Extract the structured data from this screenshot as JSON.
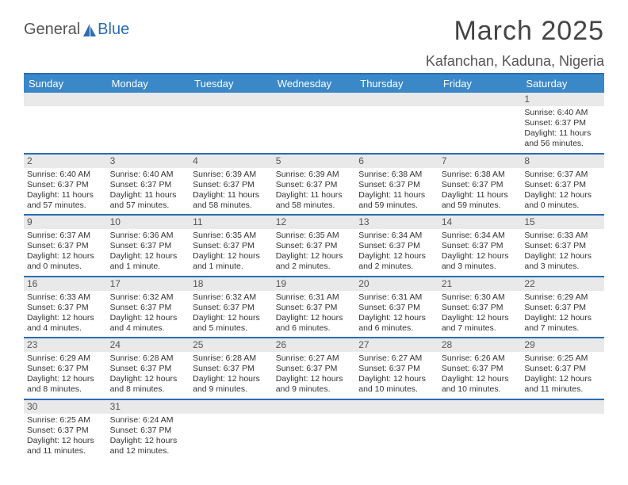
{
  "logo": {
    "general": "General",
    "blue": "Blue"
  },
  "title": "March 2025",
  "location": "Kafanchan, Kaduna, Nigeria",
  "weekdays": [
    "Sunday",
    "Monday",
    "Tuesday",
    "Wednesday",
    "Thursday",
    "Friday",
    "Saturday"
  ],
  "colors": {
    "header_bg": "#3a88c8",
    "accent_line": "#2a6db5",
    "daynum_bg": "#e9e9e9",
    "text": "#333333"
  },
  "weeks": [
    [
      {
        "n": "",
        "sr": "",
        "ss": "",
        "dl": ""
      },
      {
        "n": "",
        "sr": "",
        "ss": "",
        "dl": ""
      },
      {
        "n": "",
        "sr": "",
        "ss": "",
        "dl": ""
      },
      {
        "n": "",
        "sr": "",
        "ss": "",
        "dl": ""
      },
      {
        "n": "",
        "sr": "",
        "ss": "",
        "dl": ""
      },
      {
        "n": "",
        "sr": "",
        "ss": "",
        "dl": ""
      },
      {
        "n": "1",
        "sr": "Sunrise: 6:40 AM",
        "ss": "Sunset: 6:37 PM",
        "dl": "Daylight: 11 hours and 56 minutes."
      }
    ],
    [
      {
        "n": "2",
        "sr": "Sunrise: 6:40 AM",
        "ss": "Sunset: 6:37 PM",
        "dl": "Daylight: 11 hours and 57 minutes."
      },
      {
        "n": "3",
        "sr": "Sunrise: 6:40 AM",
        "ss": "Sunset: 6:37 PM",
        "dl": "Daylight: 11 hours and 57 minutes."
      },
      {
        "n": "4",
        "sr": "Sunrise: 6:39 AM",
        "ss": "Sunset: 6:37 PM",
        "dl": "Daylight: 11 hours and 58 minutes."
      },
      {
        "n": "5",
        "sr": "Sunrise: 6:39 AM",
        "ss": "Sunset: 6:37 PM",
        "dl": "Daylight: 11 hours and 58 minutes."
      },
      {
        "n": "6",
        "sr": "Sunrise: 6:38 AM",
        "ss": "Sunset: 6:37 PM",
        "dl": "Daylight: 11 hours and 59 minutes."
      },
      {
        "n": "7",
        "sr": "Sunrise: 6:38 AM",
        "ss": "Sunset: 6:37 PM",
        "dl": "Daylight: 11 hours and 59 minutes."
      },
      {
        "n": "8",
        "sr": "Sunrise: 6:37 AM",
        "ss": "Sunset: 6:37 PM",
        "dl": "Daylight: 12 hours and 0 minutes."
      }
    ],
    [
      {
        "n": "9",
        "sr": "Sunrise: 6:37 AM",
        "ss": "Sunset: 6:37 PM",
        "dl": "Daylight: 12 hours and 0 minutes."
      },
      {
        "n": "10",
        "sr": "Sunrise: 6:36 AM",
        "ss": "Sunset: 6:37 PM",
        "dl": "Daylight: 12 hours and 1 minute."
      },
      {
        "n": "11",
        "sr": "Sunrise: 6:35 AM",
        "ss": "Sunset: 6:37 PM",
        "dl": "Daylight: 12 hours and 1 minute."
      },
      {
        "n": "12",
        "sr": "Sunrise: 6:35 AM",
        "ss": "Sunset: 6:37 PM",
        "dl": "Daylight: 12 hours and 2 minutes."
      },
      {
        "n": "13",
        "sr": "Sunrise: 6:34 AM",
        "ss": "Sunset: 6:37 PM",
        "dl": "Daylight: 12 hours and 2 minutes."
      },
      {
        "n": "14",
        "sr": "Sunrise: 6:34 AM",
        "ss": "Sunset: 6:37 PM",
        "dl": "Daylight: 12 hours and 3 minutes."
      },
      {
        "n": "15",
        "sr": "Sunrise: 6:33 AM",
        "ss": "Sunset: 6:37 PM",
        "dl": "Daylight: 12 hours and 3 minutes."
      }
    ],
    [
      {
        "n": "16",
        "sr": "Sunrise: 6:33 AM",
        "ss": "Sunset: 6:37 PM",
        "dl": "Daylight: 12 hours and 4 minutes."
      },
      {
        "n": "17",
        "sr": "Sunrise: 6:32 AM",
        "ss": "Sunset: 6:37 PM",
        "dl": "Daylight: 12 hours and 4 minutes."
      },
      {
        "n": "18",
        "sr": "Sunrise: 6:32 AM",
        "ss": "Sunset: 6:37 PM",
        "dl": "Daylight: 12 hours and 5 minutes."
      },
      {
        "n": "19",
        "sr": "Sunrise: 6:31 AM",
        "ss": "Sunset: 6:37 PM",
        "dl": "Daylight: 12 hours and 6 minutes."
      },
      {
        "n": "20",
        "sr": "Sunrise: 6:31 AM",
        "ss": "Sunset: 6:37 PM",
        "dl": "Daylight: 12 hours and 6 minutes."
      },
      {
        "n": "21",
        "sr": "Sunrise: 6:30 AM",
        "ss": "Sunset: 6:37 PM",
        "dl": "Daylight: 12 hours and 7 minutes."
      },
      {
        "n": "22",
        "sr": "Sunrise: 6:29 AM",
        "ss": "Sunset: 6:37 PM",
        "dl": "Daylight: 12 hours and 7 minutes."
      }
    ],
    [
      {
        "n": "23",
        "sr": "Sunrise: 6:29 AM",
        "ss": "Sunset: 6:37 PM",
        "dl": "Daylight: 12 hours and 8 minutes."
      },
      {
        "n": "24",
        "sr": "Sunrise: 6:28 AM",
        "ss": "Sunset: 6:37 PM",
        "dl": "Daylight: 12 hours and 8 minutes."
      },
      {
        "n": "25",
        "sr": "Sunrise: 6:28 AM",
        "ss": "Sunset: 6:37 PM",
        "dl": "Daylight: 12 hours and 9 minutes."
      },
      {
        "n": "26",
        "sr": "Sunrise: 6:27 AM",
        "ss": "Sunset: 6:37 PM",
        "dl": "Daylight: 12 hours and 9 minutes."
      },
      {
        "n": "27",
        "sr": "Sunrise: 6:27 AM",
        "ss": "Sunset: 6:37 PM",
        "dl": "Daylight: 12 hours and 10 minutes."
      },
      {
        "n": "28",
        "sr": "Sunrise: 6:26 AM",
        "ss": "Sunset: 6:37 PM",
        "dl": "Daylight: 12 hours and 10 minutes."
      },
      {
        "n": "29",
        "sr": "Sunrise: 6:25 AM",
        "ss": "Sunset: 6:37 PM",
        "dl": "Daylight: 12 hours and 11 minutes."
      }
    ],
    [
      {
        "n": "30",
        "sr": "Sunrise: 6:25 AM",
        "ss": "Sunset: 6:37 PM",
        "dl": "Daylight: 12 hours and 11 minutes."
      },
      {
        "n": "31",
        "sr": "Sunrise: 6:24 AM",
        "ss": "Sunset: 6:37 PM",
        "dl": "Daylight: 12 hours and 12 minutes."
      },
      {
        "n": "",
        "sr": "",
        "ss": "",
        "dl": ""
      },
      {
        "n": "",
        "sr": "",
        "ss": "",
        "dl": ""
      },
      {
        "n": "",
        "sr": "",
        "ss": "",
        "dl": ""
      },
      {
        "n": "",
        "sr": "",
        "ss": "",
        "dl": ""
      },
      {
        "n": "",
        "sr": "",
        "ss": "",
        "dl": ""
      }
    ]
  ]
}
